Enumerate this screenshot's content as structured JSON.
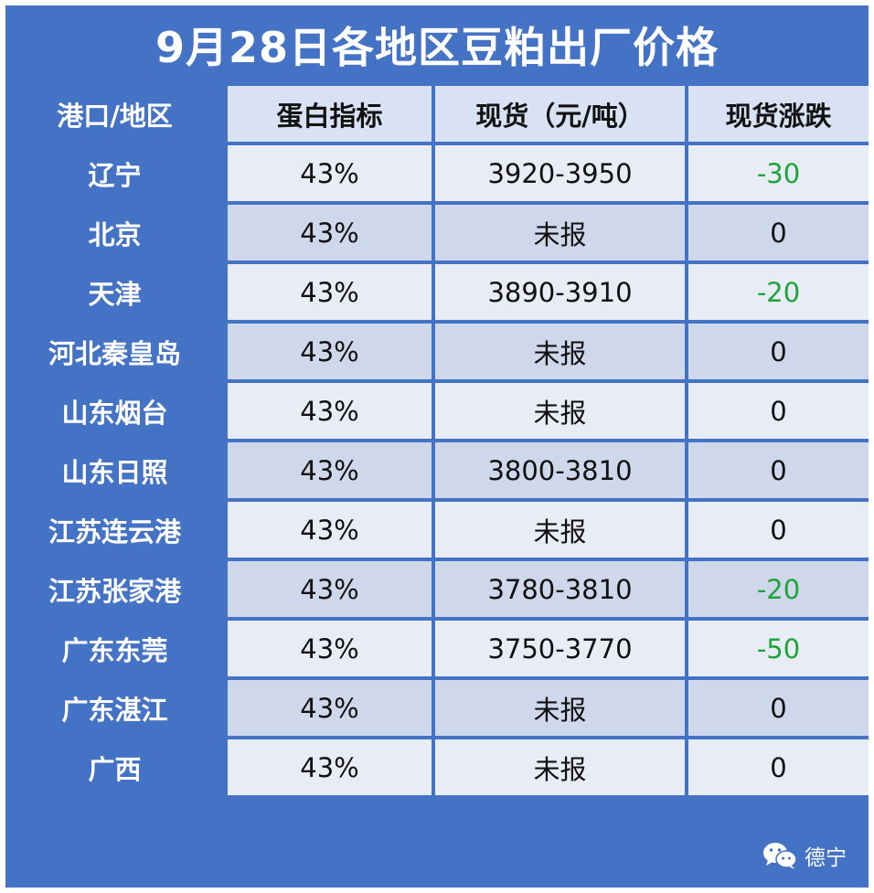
{
  "title": "9月28日各地区豆粕出厂价格",
  "headers": [
    "港口/地区",
    "蛋白指标",
    "现货（元/吨）",
    "现货涨跌"
  ],
  "rows": [
    {
      "region": "辽宁",
      "protein": "43%",
      "price": "3920-3950",
      "change": "-30"
    },
    {
      "region": "北京",
      "protein": "43%",
      "price": "未报",
      "change": "0"
    },
    {
      "region": "天津",
      "protein": "43%",
      "price": "3890-3910",
      "change": "-20"
    },
    {
      "region": "河北秦皇岛",
      "protein": "43%",
      "price": "未报",
      "change": "0"
    },
    {
      "region": "山东烟台",
      "protein": "43%",
      "price": "未报",
      "change": "0"
    },
    {
      "region": "山东日照",
      "protein": "43%",
      "price": "3800-3810",
      "change": "0"
    },
    {
      "region": "江苏连云港",
      "protein": "43%",
      "price": "未报",
      "change": "0"
    },
    {
      "region": "江苏张家港",
      "protein": "43%",
      "price": "3780-3810",
      "change": "-20"
    },
    {
      "region": "广东东莞",
      "protein": "43%",
      "price": "3750-3770",
      "change": "-50"
    },
    {
      "region": "广东湛江",
      "protein": "43%",
      "price": "未报",
      "change": "0"
    },
    {
      "region": "广西",
      "protein": "43%",
      "price": "未报",
      "change": "0"
    }
  ],
  "footer": {
    "icon": "wechat-icon",
    "label": "德宁"
  },
  "colors": {
    "frame": "#4472c4",
    "negative": "#1fa33b"
  }
}
